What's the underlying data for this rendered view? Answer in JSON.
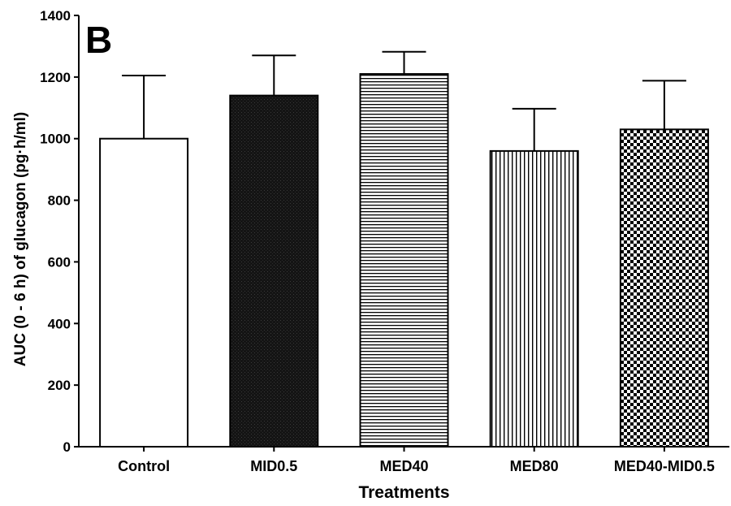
{
  "panel_label": "B",
  "chart_data": {
    "type": "bar",
    "categories": [
      "Control",
      "MID0.5",
      "MED40",
      "MED80",
      "MED40-MID0.5"
    ],
    "values": [
      1000,
      1140,
      1210,
      960,
      1030
    ],
    "errors": [
      205,
      130,
      72,
      137,
      158
    ],
    "patterns": [
      "none",
      "dark-stipple",
      "horizontal-lines",
      "vertical-lines",
      "checker"
    ],
    "xlabel": "Treatments",
    "ylabel": "AUC (0 - 6 h) of glucagon (pg·h/ml)",
    "ylim": [
      0,
      1400
    ],
    "yticks": [
      0,
      200,
      400,
      600,
      800,
      1000,
      1200,
      1400
    ],
    "grid": false,
    "legend": "none"
  }
}
